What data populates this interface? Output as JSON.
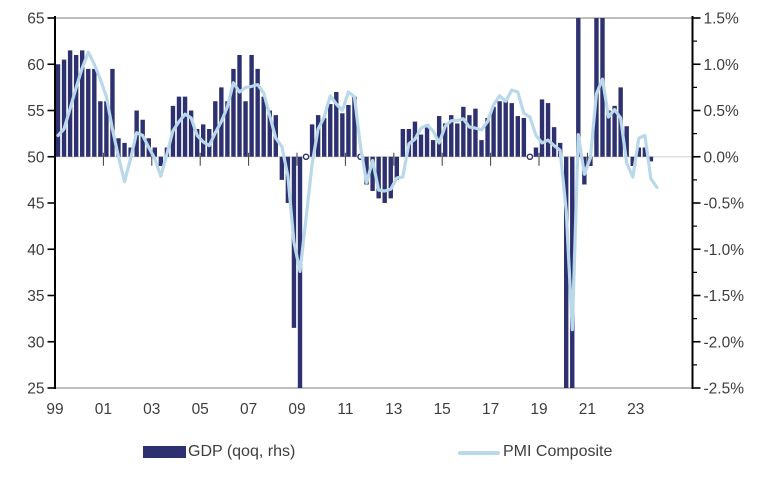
{
  "chart_data": {
    "type": "bar",
    "subtype": "bar+line combo",
    "frequency": "quarterly",
    "start": "1999 Q1",
    "series": [
      {
        "name": "GDP (qoq, rhs)",
        "type": "bar",
        "axis": "right",
        "unit": "% qoq",
        "color": "#2e3170",
        "values": [
          1.0,
          1.05,
          1.15,
          1.1,
          1.15,
          0.95,
          0.95,
          0.6,
          0.6,
          0.95,
          0.2,
          0.15,
          0.1,
          0.5,
          0.4,
          0.2,
          0.1,
          -0.1,
          0.1,
          0.55,
          0.65,
          0.65,
          0.5,
          0.3,
          0.35,
          0.3,
          0.6,
          0.75,
          0.6,
          0.95,
          1.1,
          0.6,
          1.1,
          0.95,
          0.65,
          0.5,
          0.45,
          -0.25,
          -0.5,
          -1.85,
          -3.1,
          0.0,
          0.35,
          0.45,
          0.42,
          0.57,
          0.7,
          0.47,
          0.56,
          0.65,
          0.0,
          -0.3,
          -0.37,
          -0.45,
          -0.5,
          -0.45,
          -0.25,
          0.3,
          0.3,
          0.38,
          0.24,
          0.35,
          0.18,
          0.44,
          0.36,
          0.45,
          0.36,
          0.54,
          0.45,
          0.52,
          0.18,
          0.42,
          0.54,
          0.6,
          0.62,
          0.58,
          0.44,
          0.42,
          0.0,
          0.1,
          0.62,
          0.58,
          0.32,
          0.15,
          -3.5,
          -11.4,
          12.6,
          -0.3,
          -0.1,
          2.2,
          2.3,
          0.5,
          0.55,
          0.75,
          0.33,
          -0.1,
          0.1,
          0.1,
          -0.05
        ]
      },
      {
        "name": "PMI Composite",
        "type": "line",
        "axis": "left",
        "unit": "index",
        "color": "#b9d9ea",
        "values": [
          52.3,
          53.0,
          55.2,
          57.5,
          59.6,
          61.3,
          60.0,
          58.4,
          56.5,
          53.0,
          50.0,
          47.3,
          49.8,
          52.6,
          52.3,
          51.0,
          49.8,
          47.9,
          50.3,
          52.8,
          53.8,
          54.6,
          54.2,
          52.3,
          51.6,
          51.2,
          52.6,
          53.8,
          55.4,
          58.0,
          57.0,
          57.5,
          57.6,
          57.8,
          56.9,
          54.4,
          52.0,
          51.1,
          47.9,
          40.8,
          37.6,
          43.3,
          49.2,
          53.0,
          54.3,
          56.6,
          55.7,
          55.0,
          57.0,
          56.5,
          51.1,
          47.2,
          49.6,
          46.4,
          46.3,
          46.5,
          47.7,
          47.8,
          51.4,
          51.9,
          53.1,
          53.4,
          52.8,
          51.5,
          53.3,
          53.9,
          53.9,
          54.1,
          53.2,
          53.1,
          52.9,
          53.8,
          55.6,
          56.6,
          56.0,
          57.2,
          57.0,
          54.7,
          54.3,
          52.3,
          51.5,
          51.8,
          51.2,
          50.7,
          44.2,
          31.3,
          52.4,
          48.1,
          49.9,
          56.8,
          58.4,
          54.3,
          55.1,
          54.2,
          49.3,
          47.8,
          52.0,
          52.3,
          47.6,
          46.7
        ]
      }
    ],
    "left_axis": {
      "min": 25,
      "max": 65,
      "step": 5,
      "tick_labels": [
        "65",
        "60",
        "55",
        "50",
        "45",
        "40",
        "35",
        "30",
        "25"
      ]
    },
    "right_axis": {
      "min": -2.5,
      "max": 1.5,
      "step": 0.5,
      "tick_labels": [
        "1.5%",
        "1.0%",
        "0.5%",
        "0.0%",
        "-0.5%",
        "-1.0%",
        "-1.5%",
        "-2.0%",
        "-2.5%"
      ]
    },
    "x_axis": {
      "labels": [
        "99",
        "01",
        "03",
        "05",
        "07",
        "09",
        "11",
        "13",
        "15",
        "17",
        "19",
        "21",
        "23"
      ],
      "label_interval_years": 2
    },
    "legend": [
      {
        "label": "GDP (qoq, rhs)",
        "swatch": "bar",
        "color": "#2e3170"
      },
      {
        "label": "PMI Composite",
        "swatch": "line",
        "color": "#b9d9ea"
      }
    ],
    "grid": {
      "zero_line": true,
      "zero_line_color": "#d9d9d9"
    },
    "frame_color": "#a8a8a8",
    "axis_color": "#000000",
    "label_color": "#3d3d3d",
    "legend_position": "bottom"
  }
}
